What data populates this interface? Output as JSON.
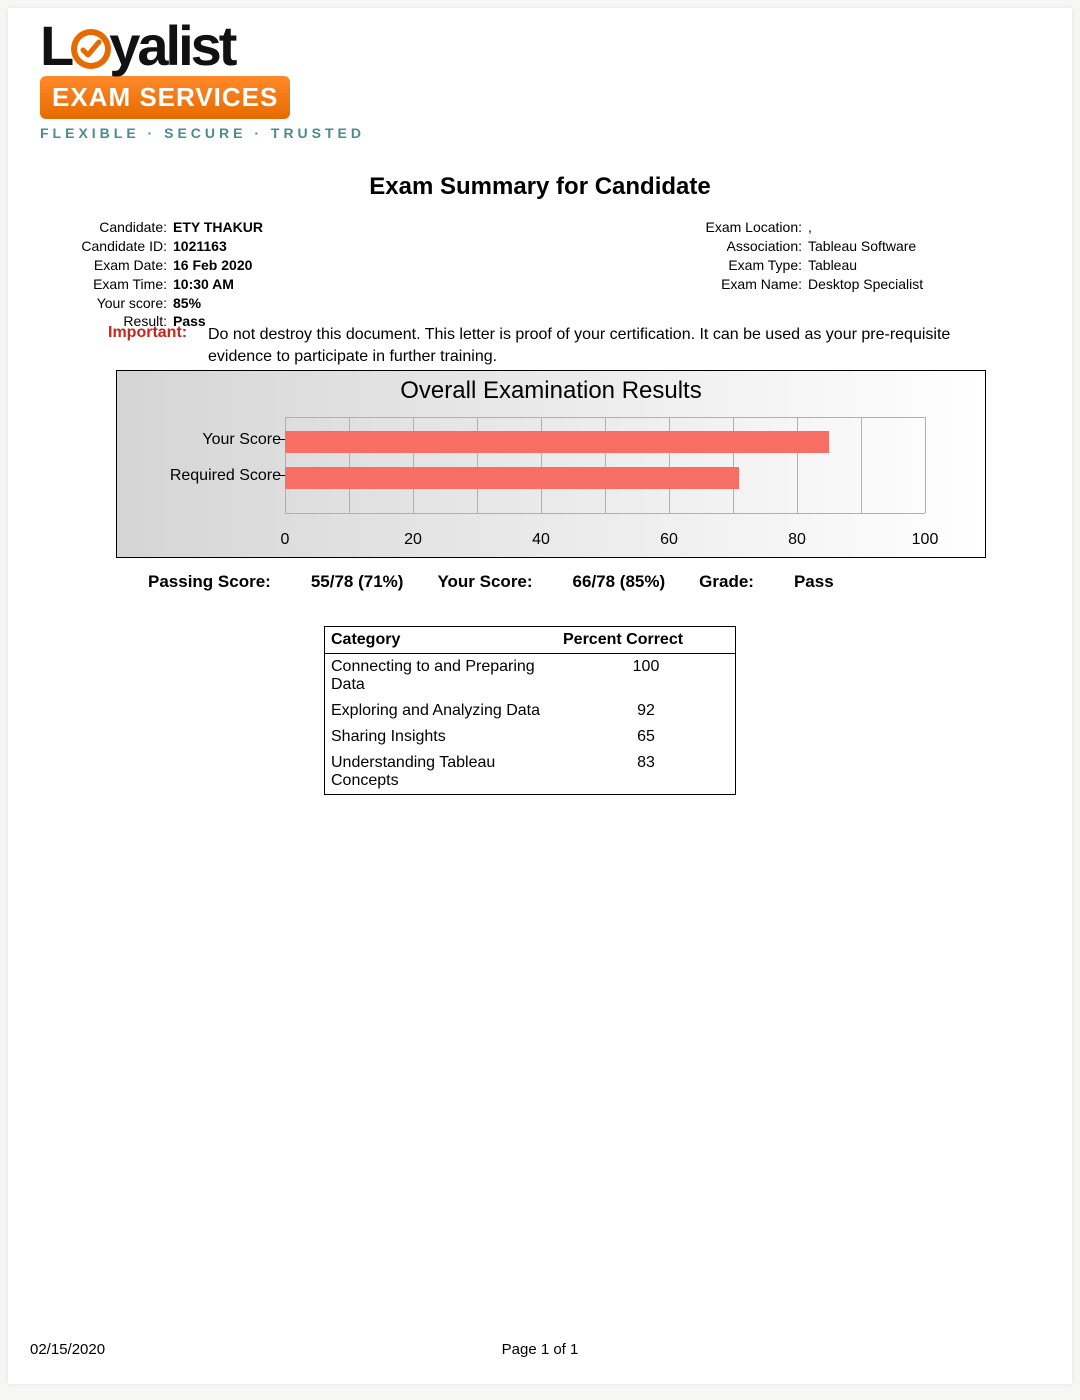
{
  "logo": {
    "word_left": "L",
    "word_right": "yalist",
    "pill": "EXAM SERVICES",
    "tagline": "FLEXIBLE · SECURE · TRUSTED",
    "tick_color": "#e66a00",
    "pill_bg_top": "#ff8a2a",
    "pill_bg_bottom": "#e66a00"
  },
  "title": "Exam Summary for Candidate",
  "candidate": {
    "labels": {
      "candidate": "Candidate:",
      "candidate_id": "Candidate ID:",
      "exam_date": "Exam Date:",
      "exam_time": "Exam Time:",
      "your_score": "Your score:",
      "result": "Result:"
    },
    "values": {
      "candidate": "ETY THAKUR",
      "candidate_id": "1021163",
      "exam_date": "16 Feb 2020",
      "exam_time": "10:30 AM",
      "your_score": "85%",
      "result": "Pass"
    }
  },
  "exam": {
    "labels": {
      "location": "Exam Location:",
      "association": "Association:",
      "type": "Exam Type:",
      "name": "Exam Name:"
    },
    "values": {
      "location": ",",
      "association": "Tableau Software",
      "type": "Tableau",
      "name": "Desktop Specialist"
    }
  },
  "important": {
    "label": "Important:",
    "text": "Do not destroy this document. This letter is proof of your certification. It can be used as your pre-requisite evidence to participate in further training.",
    "label_color": "#c7261a"
  },
  "chart": {
    "title": "Overall Examination Results",
    "type": "bar",
    "orientation": "horizontal",
    "panel_bg_gradient_from": "#d5d5d5",
    "panel_bg_gradient_to": "#ffffff",
    "grid_color": "#b0b0b0",
    "bar_color": "#f76e64",
    "xlim": [
      0,
      100
    ],
    "xtick_step": 20,
    "minor_tick_step": 10,
    "x_labels": [
      "0",
      "20",
      "40",
      "60",
      "80",
      "100"
    ],
    "series": [
      {
        "label": "Your Score",
        "value": 85
      },
      {
        "label": "Required Score",
        "value": 71
      }
    ],
    "label_fontsize": 16,
    "title_fontsize": 24
  },
  "summary": {
    "passing_label": "Passing Score:",
    "passing_value": "55/78 (71%)",
    "your_label": "Your Score:",
    "your_value": "66/78 (85%)",
    "grade_label": "Grade:",
    "grade_value": "Pass"
  },
  "categories": {
    "header_cat": "Category",
    "header_pct": "Percent Correct",
    "rows": [
      {
        "name": "Connecting to and Preparing Data",
        "pct": "100"
      },
      {
        "name": "Exploring and Analyzing Data",
        "pct": "92"
      },
      {
        "name": "Sharing Insights",
        "pct": "65"
      },
      {
        "name": "Understanding Tableau Concepts",
        "pct": "83"
      }
    ]
  },
  "footer": {
    "date": "02/15/2020",
    "page": "Page 1 of 1"
  }
}
